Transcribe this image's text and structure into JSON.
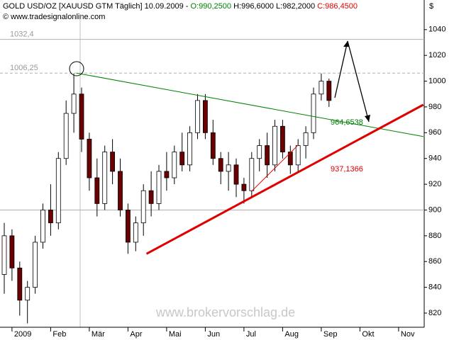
{
  "chart_data": {
    "type": "candlestick",
    "header": {
      "instrument": "GOLD USD/OZ [XAUUSD GTM  Täglich] 10.09.2009 -",
      "open": "O:990,2500",
      "high": "H:996,6000",
      "low": "L:982,2000",
      "close": "C:986,4500"
    },
    "copyright": "© www.tradesignalonline.com",
    "y_unit": "$",
    "watermark": "www.brokervorschlag.de",
    "categories": [
      null,
      "2009",
      null,
      null,
      null,
      null,
      "Feb",
      null,
      null,
      null,
      null,
      "Mär",
      null,
      null,
      null,
      null,
      "Apr",
      null,
      null,
      null,
      null,
      "Mai",
      null,
      null,
      null,
      null,
      "Jun",
      null,
      null,
      null,
      null,
      "Jul",
      null,
      null,
      null,
      null,
      "Aug",
      null,
      null,
      null,
      null,
      "Sep",
      null,
      null,
      null,
      null,
      "Okt",
      null,
      null,
      null,
      null,
      "Nov",
      null,
      null,
      null
    ],
    "values": [
      [
        850,
        890,
        835,
        880
      ],
      [
        880,
        885,
        845,
        855
      ],
      [
        855,
        860,
        818,
        830
      ],
      [
        830,
        845,
        812,
        840
      ],
      [
        840,
        880,
        835,
        875
      ],
      [
        875,
        905,
        870,
        900
      ],
      [
        900,
        920,
        880,
        890
      ],
      [
        890,
        945,
        885,
        940
      ],
      [
        940,
        985,
        935,
        975
      ],
      [
        975,
        1006,
        960,
        990
      ],
      [
        990,
        995,
        945,
        955
      ],
      [
        955,
        960,
        915,
        925
      ],
      [
        925,
        940,
        895,
        905
      ],
      [
        905,
        950,
        900,
        945
      ],
      [
        945,
        955,
        920,
        930
      ],
      [
        930,
        940,
        895,
        900
      ],
      [
        900,
        905,
        866,
        875
      ],
      [
        875,
        895,
        868,
        890
      ],
      [
        890,
        920,
        880,
        915
      ],
      [
        915,
        930,
        895,
        905
      ],
      [
        905,
        935,
        900,
        930
      ],
      [
        930,
        945,
        915,
        925
      ],
      [
        925,
        950,
        920,
        945
      ],
      [
        945,
        960,
        930,
        935
      ],
      [
        935,
        965,
        930,
        960
      ],
      [
        960,
        990,
        955,
        985
      ],
      [
        985,
        990,
        955,
        960
      ],
      [
        960,
        970,
        935,
        940
      ],
      [
        940,
        945,
        920,
        930
      ],
      [
        930,
        945,
        915,
        935
      ],
      [
        935,
        940,
        910,
        920
      ],
      [
        920,
        925,
        905,
        915
      ],
      [
        915,
        945,
        910,
        940
      ],
      [
        940,
        955,
        930,
        950
      ],
      [
        950,
        960,
        925,
        935
      ],
      [
        935,
        970,
        930,
        965
      ],
      [
        965,
        970,
        940,
        945
      ],
      [
        945,
        950,
        928,
        935
      ],
      [
        935,
        955,
        930,
        950
      ],
      [
        950,
        965,
        940,
        960
      ],
      [
        960,
        995,
        955,
        990
      ],
      [
        990,
        1006,
        985,
        1000
      ],
      [
        1000,
        1002,
        980,
        985
      ],
      null,
      null,
      null,
      null,
      null,
      null,
      null,
      null,
      null,
      null,
      null,
      null
    ],
    "up_color": "#ffffff",
    "down_color": "#6b0000",
    "ylim": [
      809,
      1052
    ],
    "yticks": [
      820,
      840,
      860,
      880,
      900,
      920,
      940,
      960,
      980,
      1000,
      1020,
      1040
    ],
    "hlines": [
      {
        "value": 1032.4,
        "label": "1032,4",
        "dashed": false
      },
      {
        "value": 1006.25,
        "label": "1006,25",
        "dashed": true
      },
      {
        "value": 900,
        "dashed": false
      }
    ],
    "trendlines": [
      {
        "color": "#008000",
        "from": [
          9.36,
          1006.25
        ],
        "to": [
          54.2,
          957
        ],
        "width": 1,
        "value": {
          "value": 964.6538,
          "label": "964,6538"
        }
      },
      {
        "color": "#e00000",
        "from": [
          18.4,
          866
        ],
        "to": [
          54.2,
          981.7
        ],
        "width": 3,
        "value": {
          "value": 937.1366,
          "label": "937,1366"
        }
      },
      {
        "color": "#e00000",
        "from": [
          32.0,
          914.6
        ],
        "to": [
          38.0,
          950.4
        ],
        "width": 1
      }
    ]
  }
}
